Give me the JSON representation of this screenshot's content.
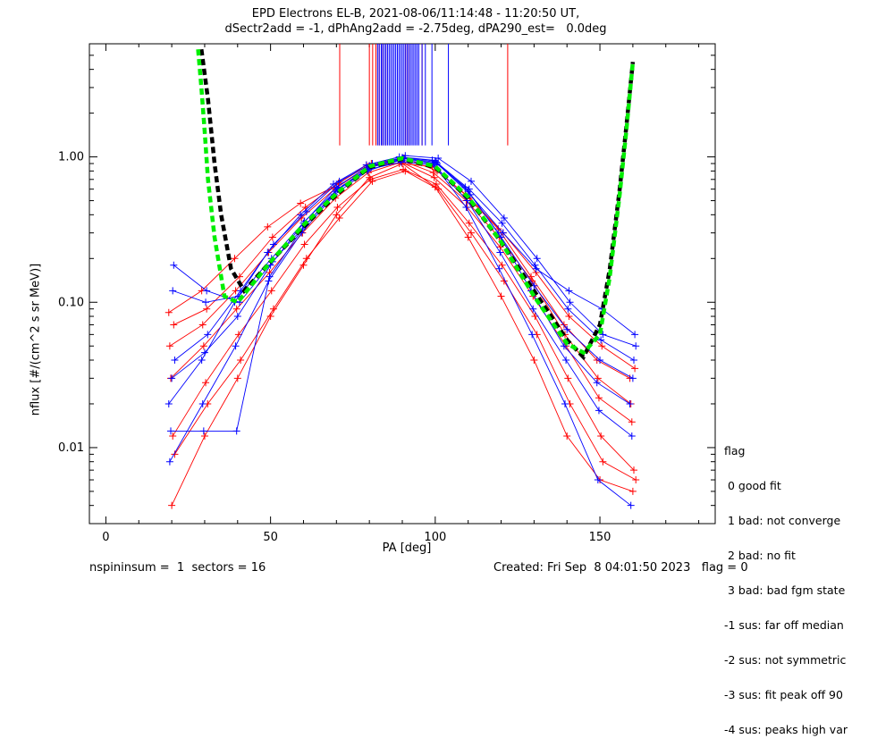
{
  "title_lines": [
    "EPD Electrons EL-B, 2021-08-06/11:14:48 - 11:20:50 UT,",
    "dSectr2add = -1, dPhAng2add = -2.75deg, dPA290_est=   0.0deg"
  ],
  "footer": {
    "left": "nspininsum =  1  sectors = 16",
    "right": "Created: Fri Sep  8 04:01:50 2023   flag = 0"
  },
  "legend": {
    "title": "flag",
    "entries": [
      " 0 good fit",
      " 1 bad: not converge",
      " 2 bad: no fit",
      " 3 bad: bad fgm state",
      "-1 sus: far off median",
      "-2 sus: not symmetric",
      "-3 sus: fit peak off 90",
      "-4 sus: peaks high var"
    ]
  },
  "colors": {
    "series_red": "#ff0000",
    "series_blue": "#0000ff",
    "fit_black": "#000000",
    "fit_green": "#00ee00"
  },
  "chart_data": {
    "type": "line",
    "xlabel": "PA [deg]",
    "ylabel": "nflux [#/(cm^2 s sr MeV)]",
    "xlim": [
      -5,
      185
    ],
    "ylim": [
      0.003,
      6
    ],
    "yscale": "log",
    "xticks": [
      0,
      50,
      100,
      150
    ],
    "yticks": [
      0.01,
      0.1,
      1.0
    ],
    "ytick_labels": [
      "0.01",
      "0.10",
      "1.00"
    ],
    "pa_bins": [
      20,
      30,
      40,
      50,
      60,
      70,
      80,
      90,
      100,
      110,
      120,
      130,
      140,
      150,
      160
    ],
    "series": [
      {
        "color": "red",
        "values": [
          0.085,
          0.12,
          0.2,
          0.33,
          0.48,
          0.62,
          0.88,
          0.9,
          0.86,
          0.55,
          0.32,
          0.15,
          0.07,
          0.04,
          0.03
        ]
      },
      {
        "color": "red",
        "values": [
          0.03,
          0.05,
          0.09,
          0.16,
          0.3,
          0.52,
          0.78,
          0.92,
          0.72,
          0.45,
          0.24,
          0.11,
          0.05,
          0.022,
          0.015
        ]
      },
      {
        "color": "red",
        "values": [
          0.012,
          0.028,
          0.06,
          0.12,
          0.25,
          0.45,
          0.7,
          0.82,
          0.65,
          0.35,
          0.18,
          0.08,
          0.03,
          0.012,
          0.007
        ]
      },
      {
        "color": "red",
        "values": [
          0.009,
          0.02,
          0.04,
          0.09,
          0.2,
          0.38,
          0.68,
          0.8,
          0.6,
          0.3,
          0.14,
          0.06,
          0.02,
          0.008,
          0.006
        ]
      },
      {
        "color": "red",
        "values": [
          0.05,
          0.07,
          0.12,
          0.22,
          0.38,
          0.6,
          0.85,
          0.95,
          0.78,
          0.5,
          0.28,
          0.14,
          0.06,
          0.03,
          0.02
        ]
      },
      {
        "color": "red",
        "values": [
          0.004,
          0.012,
          0.03,
          0.08,
          0.18,
          0.4,
          0.72,
          0.9,
          0.62,
          0.28,
          0.11,
          0.04,
          0.012,
          0.006,
          0.005
        ]
      },
      {
        "color": "red",
        "values": [
          0.07,
          0.09,
          0.15,
          0.28,
          0.45,
          0.66,
          0.9,
          0.98,
          0.8,
          0.52,
          0.3,
          0.16,
          0.08,
          0.05,
          0.035
        ]
      },
      {
        "color": "blue",
        "values": [
          0.02,
          0.04,
          0.1,
          0.22,
          0.4,
          0.65,
          0.88,
          1.0,
          0.95,
          0.62,
          0.3,
          0.12,
          0.05,
          0.028,
          0.02
        ]
      },
      {
        "color": "blue",
        "values": [
          0.013,
          0.013,
          0.013,
          0.15,
          0.32,
          0.58,
          0.82,
          0.92,
          0.88,
          0.5,
          0.22,
          0.09,
          0.04,
          0.018,
          0.012
        ]
      },
      {
        "color": "blue",
        "values": [
          0.12,
          0.1,
          0.11,
          0.2,
          0.36,
          0.6,
          0.86,
          0.98,
          0.92,
          0.6,
          0.35,
          0.18,
          0.09,
          0.055,
          0.04
        ]
      },
      {
        "color": "blue",
        "values": [
          0.04,
          0.06,
          0.12,
          0.25,
          0.42,
          0.68,
          0.9,
          1.02,
          0.98,
          0.68,
          0.38,
          0.2,
          0.1,
          0.06,
          0.05
        ]
      },
      {
        "color": "blue",
        "values": [
          0.008,
          0.02,
          0.05,
          0.14,
          0.3,
          0.55,
          0.8,
          0.95,
          0.9,
          0.45,
          0.17,
          0.06,
          0.02,
          0.006,
          0.004
        ]
      },
      {
        "color": "blue",
        "values": [
          0.03,
          0.045,
          0.08,
          0.18,
          0.35,
          0.62,
          0.87,
          0.99,
          0.94,
          0.58,
          0.28,
          0.13,
          0.065,
          0.04,
          0.03
        ]
      },
      {
        "color": "blue",
        "values": [
          0.18,
          0.12,
          0.1,
          0.19,
          0.34,
          0.6,
          0.85,
          0.97,
          0.9,
          0.55,
          0.3,
          0.17,
          0.12,
          0.09,
          0.06
        ]
      }
    ],
    "fit_curves": [
      {
        "color": "black",
        "style": "dashed",
        "x": [
          29,
          31,
          33,
          35,
          38,
          42,
          50,
          60,
          70,
          80,
          90,
          100,
          110,
          120,
          130,
          140,
          145,
          150,
          153,
          156,
          158,
          160
        ],
        "y": [
          5.5,
          2.5,
          0.9,
          0.4,
          0.17,
          0.12,
          0.19,
          0.33,
          0.55,
          0.85,
          0.97,
          0.85,
          0.52,
          0.26,
          0.12,
          0.055,
          0.042,
          0.07,
          0.17,
          0.6,
          1.6,
          4.5
        ]
      },
      {
        "color": "green",
        "style": "dashed",
        "x": [
          28,
          29,
          30,
          31,
          33,
          36,
          40,
          50,
          60,
          70,
          80,
          90,
          100,
          110,
          120,
          130,
          140,
          145,
          150,
          153,
          156,
          158,
          160
        ],
        "y": [
          5.5,
          3.0,
          1.5,
          0.7,
          0.28,
          0.11,
          0.1,
          0.19,
          0.34,
          0.56,
          0.86,
          0.98,
          0.86,
          0.53,
          0.26,
          0.11,
          0.052,
          0.045,
          0.06,
          0.15,
          0.55,
          1.5,
          4.5
        ]
      }
    ],
    "flag_ticks": [
      {
        "color": "red",
        "x": [
          71,
          80,
          81,
          82,
          83,
          84,
          85,
          91,
          92,
          96,
          122
        ]
      },
      {
        "color": "blue",
        "x": [
          82.5,
          83,
          83.6,
          84,
          84.5,
          85,
          85.5,
          86,
          86.5,
          87,
          87.5,
          88,
          88.5,
          89,
          89.5,
          90,
          90.5,
          91,
          91.5,
          92,
          92.5,
          93,
          93.5,
          94,
          94.5,
          95,
          96,
          97,
          99,
          104
        ]
      }
    ]
  }
}
